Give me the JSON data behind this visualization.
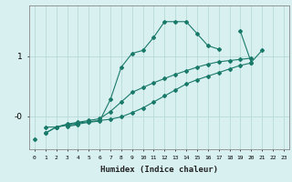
{
  "xlabel": "Humidex (Indice chaleur)",
  "bg_color": "#d8f0f0",
  "grid_color": "#b8dada",
  "line_color": "#1a7a6a",
  "x_ticks": [
    0,
    1,
    2,
    3,
    4,
    5,
    6,
    7,
    8,
    9,
    10,
    11,
    12,
    13,
    14,
    15,
    16,
    17,
    18,
    19,
    20,
    21,
    22,
    23
  ],
  "yticks_labels": [
    "-0",
    "1"
  ],
  "yticks_positions": [
    0.0,
    1.0
  ],
  "ylim": [
    -0.55,
    1.85
  ],
  "xlim": [
    -0.5,
    23.5
  ],
  "series": [
    [
      null,
      -0.28,
      -0.18,
      -0.15,
      -0.13,
      -0.1,
      -0.08,
      0.28,
      0.82,
      1.05,
      1.1,
      1.32,
      1.58,
      1.58,
      1.58,
      1.38,
      1.18,
      1.12,
      null,
      1.42,
      0.9,
      1.1,
      null,
      null
    ],
    [
      null,
      -0.18,
      -0.18,
      -0.13,
      -0.1,
      -0.07,
      -0.04,
      0.08,
      0.24,
      0.4,
      0.48,
      0.56,
      0.63,
      0.7,
      0.76,
      0.82,
      0.87,
      0.91,
      0.93,
      0.95,
      0.97,
      null,
      null,
      null
    ],
    [
      null,
      -0.28,
      -0.18,
      -0.14,
      -0.11,
      -0.09,
      -0.07,
      -0.05,
      -0.01,
      0.06,
      0.14,
      0.24,
      0.34,
      0.44,
      0.54,
      0.61,
      0.67,
      0.73,
      0.79,
      0.85,
      0.89,
      null,
      null,
      null
    ],
    [
      -0.38,
      null,
      null,
      -0.17,
      -0.14,
      null,
      null,
      null,
      null,
      null,
      null,
      null,
      null,
      null,
      null,
      null,
      null,
      null,
      null,
      null,
      null,
      null,
      null,
      null
    ]
  ]
}
